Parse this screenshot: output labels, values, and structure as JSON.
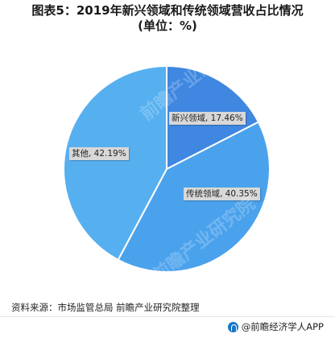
{
  "title_line1": "图表5：2019年新兴领域和传统领域营收占比情况",
  "title_line2": "(单位：%)",
  "source": "资料来源：市场监管总局 前瞻产业研究院整理",
  "footer_brand": "@前瞻经济学人APP",
  "watermark": "前瞻产业研究院",
  "chart_data": {
    "type": "pie",
    "title": "2019年新兴领域和传统领域营收占比情况",
    "unit": "%",
    "slices": [
      {
        "label": "新兴领域",
        "value": 17.46,
        "display": "新兴领域, 17.46%",
        "color": "#3f87e0"
      },
      {
        "label": "传统领域",
        "value": 40.35,
        "display": "传统领域, 40.35%",
        "color": "#4aa2ec"
      },
      {
        "label": "其他",
        "value": 42.19,
        "display": "其他, 42.19%",
        "color": "#56b0f0"
      }
    ],
    "start_angle_deg": 0,
    "direction": "clockwise"
  }
}
